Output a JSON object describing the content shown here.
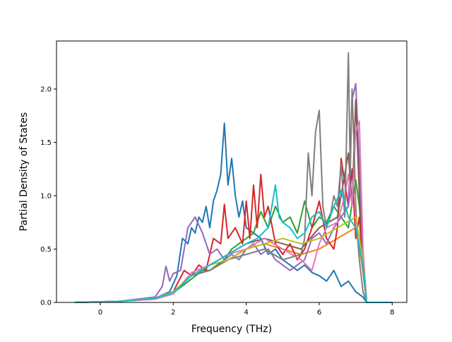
{
  "chart_data": {
    "type": "line",
    "xlabel": "Frequency (THz)",
    "ylabel": "Partial Density of States",
    "xlim": [
      -1.2,
      8.4
    ],
    "ylim": [
      0.0,
      2.45
    ],
    "xticks": [
      0,
      2,
      4,
      6,
      8
    ],
    "xtick_labels": [
      "0",
      "2",
      "4",
      "6",
      "8"
    ],
    "yticks": [
      0.0,
      0.5,
      1.0,
      1.5,
      2.0
    ],
    "ytick_labels": [
      "0.0",
      "0.5",
      "1.0",
      "1.5",
      "2.0"
    ],
    "grid": false,
    "legend": "none",
    "series": [
      {
        "color": "#1f77b4",
        "x": [
          -0.7,
          0.5,
          1.0,
          1.5,
          1.9,
          2.1,
          2.25,
          2.4,
          2.5,
          2.6,
          2.7,
          2.8,
          2.9,
          3.0,
          3.1,
          3.2,
          3.3,
          3.4,
          3.5,
          3.6,
          3.7,
          3.8,
          3.9,
          4.0,
          4.2,
          4.4,
          4.6,
          4.8,
          5.0,
          5.2,
          5.4,
          5.6,
          5.8,
          6.0,
          6.2,
          6.4,
          6.6,
          6.8,
          7.0,
          7.2,
          7.3,
          8.0
        ],
        "y": [
          0,
          0.01,
          0.02,
          0.04,
          0.1,
          0.25,
          0.6,
          0.55,
          0.7,
          0.65,
          0.8,
          0.75,
          0.9,
          0.7,
          0.95,
          1.05,
          1.2,
          1.68,
          1.1,
          1.35,
          1.0,
          0.8,
          0.95,
          0.7,
          0.65,
          0.6,
          0.45,
          0.5,
          0.4,
          0.35,
          0.3,
          0.35,
          0.28,
          0.25,
          0.2,
          0.3,
          0.15,
          0.2,
          0.1,
          0.05,
          0,
          0
        ]
      },
      {
        "color": "#ff7f0e",
        "x": [
          -0.7,
          0.5,
          1.5,
          2.0,
          2.5,
          3.0,
          3.5,
          4.0,
          4.5,
          5.0,
          5.5,
          6.0,
          6.5,
          7.0,
          7.2,
          7.3,
          8.0
        ],
        "y": [
          0,
          0.01,
          0.04,
          0.1,
          0.25,
          0.3,
          0.4,
          0.5,
          0.55,
          0.5,
          0.45,
          0.5,
          0.6,
          0.7,
          0.3,
          0,
          0
        ]
      },
      {
        "color": "#2ca02c",
        "x": [
          -0.7,
          0.5,
          1.5,
          2.0,
          2.5,
          2.8,
          3.0,
          3.2,
          3.4,
          3.6,
          3.8,
          4.0,
          4.2,
          4.4,
          4.6,
          4.8,
          5.0,
          5.2,
          5.4,
          5.6,
          5.8,
          6.0,
          6.2,
          6.4,
          6.6,
          6.8,
          7.0,
          7.1,
          7.2,
          7.3,
          8.0
        ],
        "y": [
          0,
          0.01,
          0.04,
          0.09,
          0.22,
          0.3,
          0.3,
          0.35,
          0.4,
          0.5,
          0.55,
          0.6,
          0.65,
          0.85,
          0.7,
          0.9,
          0.75,
          0.8,
          0.65,
          0.95,
          0.7,
          0.8,
          0.75,
          0.9,
          0.8,
          0.7,
          1.15,
          0.9,
          0.4,
          0,
          0
        ]
      },
      {
        "color": "#d62728",
        "x": [
          -0.7,
          0.5,
          1.5,
          2.0,
          2.3,
          2.5,
          2.7,
          2.9,
          3.1,
          3.3,
          3.4,
          3.5,
          3.7,
          3.9,
          4.0,
          4.1,
          4.2,
          4.3,
          4.4,
          4.5,
          4.6,
          4.8,
          5.0,
          5.2,
          5.4,
          5.6,
          5.8,
          6.0,
          6.2,
          6.4,
          6.5,
          6.6,
          6.8,
          6.9,
          7.0,
          7.1,
          7.2,
          7.3,
          8.0
        ],
        "y": [
          0,
          0.01,
          0.04,
          0.1,
          0.3,
          0.25,
          0.35,
          0.3,
          0.6,
          0.55,
          0.92,
          0.6,
          0.7,
          0.55,
          0.95,
          0.6,
          1.1,
          0.7,
          1.2,
          0.8,
          0.9,
          0.55,
          0.45,
          0.55,
          0.4,
          0.5,
          0.7,
          0.95,
          0.6,
          0.5,
          0.7,
          1.35,
          0.9,
          1.25,
          0.6,
          0.8,
          0.3,
          0,
          0
        ]
      },
      {
        "color": "#9467bd",
        "x": [
          -0.7,
          0.5,
          1.5,
          1.7,
          1.8,
          1.9,
          2.0,
          2.2,
          2.4,
          2.6,
          2.8,
          3.0,
          3.2,
          3.4,
          3.6,
          3.8,
          4.0,
          4.2,
          4.4,
          4.6,
          4.8,
          5.0,
          5.2,
          5.4,
          5.6,
          5.8,
          6.0,
          6.2,
          6.4,
          6.6,
          6.8,
          6.9,
          7.0,
          7.1,
          7.2,
          7.3,
          8.0
        ],
        "y": [
          0,
          0.01,
          0.05,
          0.15,
          0.34,
          0.2,
          0.27,
          0.3,
          0.7,
          0.8,
          0.65,
          0.45,
          0.5,
          0.4,
          0.45,
          0.4,
          0.5,
          0.55,
          0.45,
          0.5,
          0.4,
          0.35,
          0.3,
          0.35,
          0.4,
          0.6,
          0.65,
          0.55,
          0.7,
          0.8,
          0.9,
          1.9,
          2.05,
          1.3,
          0.4,
          0,
          0
        ]
      },
      {
        "color": "#8c564b",
        "x": [
          -0.7,
          0.5,
          1.5,
          2.0,
          2.5,
          3.0,
          3.5,
          4.0,
          4.5,
          5.0,
          5.5,
          6.0,
          6.5,
          6.8,
          6.9,
          7.0,
          7.1,
          7.2,
          7.3,
          8.0
        ],
        "y": [
          0,
          0.01,
          0.04,
          0.1,
          0.25,
          0.35,
          0.45,
          0.55,
          0.6,
          0.55,
          0.5,
          0.7,
          0.8,
          1.4,
          0.9,
          1.9,
          1.0,
          0.3,
          0,
          0
        ]
      },
      {
        "color": "#e377c2",
        "x": [
          -0.7,
          0.5,
          1.5,
          2.0,
          2.5,
          3.0,
          3.5,
          4.0,
          4.5,
          5.0,
          5.5,
          5.8,
          6.0,
          6.2,
          6.5,
          6.7,
          6.8,
          6.9,
          7.0,
          7.1,
          7.2,
          7.3,
          8.0
        ],
        "y": [
          0,
          0.01,
          0.03,
          0.08,
          0.28,
          0.35,
          0.45,
          0.5,
          0.6,
          0.5,
          0.4,
          0.3,
          0.55,
          0.7,
          0.75,
          1.0,
          1.2,
          0.9,
          1.6,
          1.7,
          0.5,
          0,
          0
        ]
      },
      {
        "color": "#7f7f7f",
        "x": [
          -0.7,
          0.5,
          1.5,
          2.0,
          2.5,
          3.0,
          3.5,
          4.0,
          4.5,
          5.0,
          5.5,
          5.6,
          5.7,
          5.8,
          5.9,
          6.0,
          6.1,
          6.2,
          6.3,
          6.4,
          6.5,
          6.6,
          6.7,
          6.8,
          6.85,
          6.9,
          6.95,
          7.0,
          7.05,
          7.1,
          7.2,
          7.3,
          8.0
        ],
        "y": [
          0,
          0.01,
          0.04,
          0.1,
          0.25,
          0.3,
          0.4,
          0.45,
          0.5,
          0.4,
          0.45,
          0.6,
          1.4,
          1.0,
          1.6,
          1.8,
          0.9,
          0.7,
          0.8,
          1.0,
          0.9,
          1.3,
          0.8,
          2.34,
          1.2,
          2.0,
          1.5,
          0.9,
          0.6,
          0.4,
          0.1,
          0,
          0
        ]
      },
      {
        "color": "#bcbd22",
        "x": [
          -0.7,
          0.5,
          1.5,
          2.0,
          2.5,
          3.0,
          3.5,
          4.0,
          4.5,
          5.0,
          5.5,
          6.0,
          6.5,
          7.0,
          7.2,
          7.3,
          8.0
        ],
        "y": [
          0,
          0.01,
          0.04,
          0.1,
          0.25,
          0.35,
          0.4,
          0.5,
          0.55,
          0.6,
          0.55,
          0.6,
          0.7,
          0.8,
          0.4,
          0,
          0
        ]
      },
      {
        "color": "#17becf",
        "x": [
          -0.7,
          0.5,
          1.5,
          2.0,
          2.5,
          3.0,
          3.5,
          4.0,
          4.3,
          4.6,
          4.8,
          4.9,
          5.0,
          5.2,
          5.4,
          5.6,
          5.8,
          6.0,
          6.2,
          6.4,
          6.6,
          6.8,
          7.0,
          7.2,
          7.3,
          8.0
        ],
        "y": [
          0,
          0.01,
          0.04,
          0.09,
          0.25,
          0.35,
          0.45,
          0.55,
          0.6,
          0.7,
          1.1,
          0.8,
          0.75,
          0.7,
          0.6,
          0.65,
          0.8,
          0.85,
          0.7,
          0.9,
          1.05,
          0.8,
          0.7,
          0.35,
          0,
          0
        ]
      }
    ]
  }
}
